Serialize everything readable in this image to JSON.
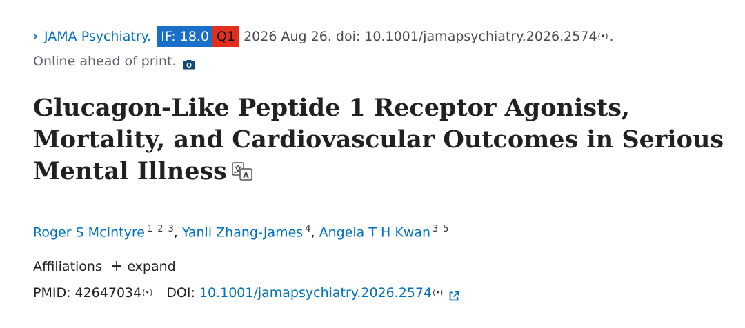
{
  "citation": {
    "chevron": "›",
    "journal": "JAMA Psychiatry.",
    "if_badge": "IF: 18.0",
    "quartile": "Q1",
    "date_doi": "2026 Aug 26. doi: 10.1001/jamapsychiatry.2026.2574",
    "broadcast_mark": "(•)",
    "trailing_period": ".",
    "status": "Online ahead of print.",
    "colors": {
      "if_badge": "#1a70c8",
      "quartile_badge": "#e32f20",
      "link": "#0071bc"
    }
  },
  "title": "Glucagon-Like Peptide 1 Receptor Agonists, Mortality, and Cardiovascular Outcomes in Serious Mental Illness",
  "authors": [
    {
      "name": "Roger S McIntyre",
      "affs": [
        "1",
        "2",
        "3"
      ]
    },
    {
      "name": "Yanli Zhang-James",
      "affs": [
        "4"
      ]
    },
    {
      "name": "Angela T H Kwan",
      "affs": [
        "3",
        "5"
      ]
    }
  ],
  "affiliations": {
    "label": "Affiliations",
    "expand_label": "expand",
    "expand_symbol": "+"
  },
  "ids": {
    "pmid_label": "PMID:",
    "pmid": "42647034",
    "doi_label": "DOI:",
    "doi": "10.1001/jamapsychiatry.2026.2574"
  },
  "icons": [
    "camera-icon",
    "translate-icon",
    "external-link-icon",
    "broadcast-icon"
  ]
}
